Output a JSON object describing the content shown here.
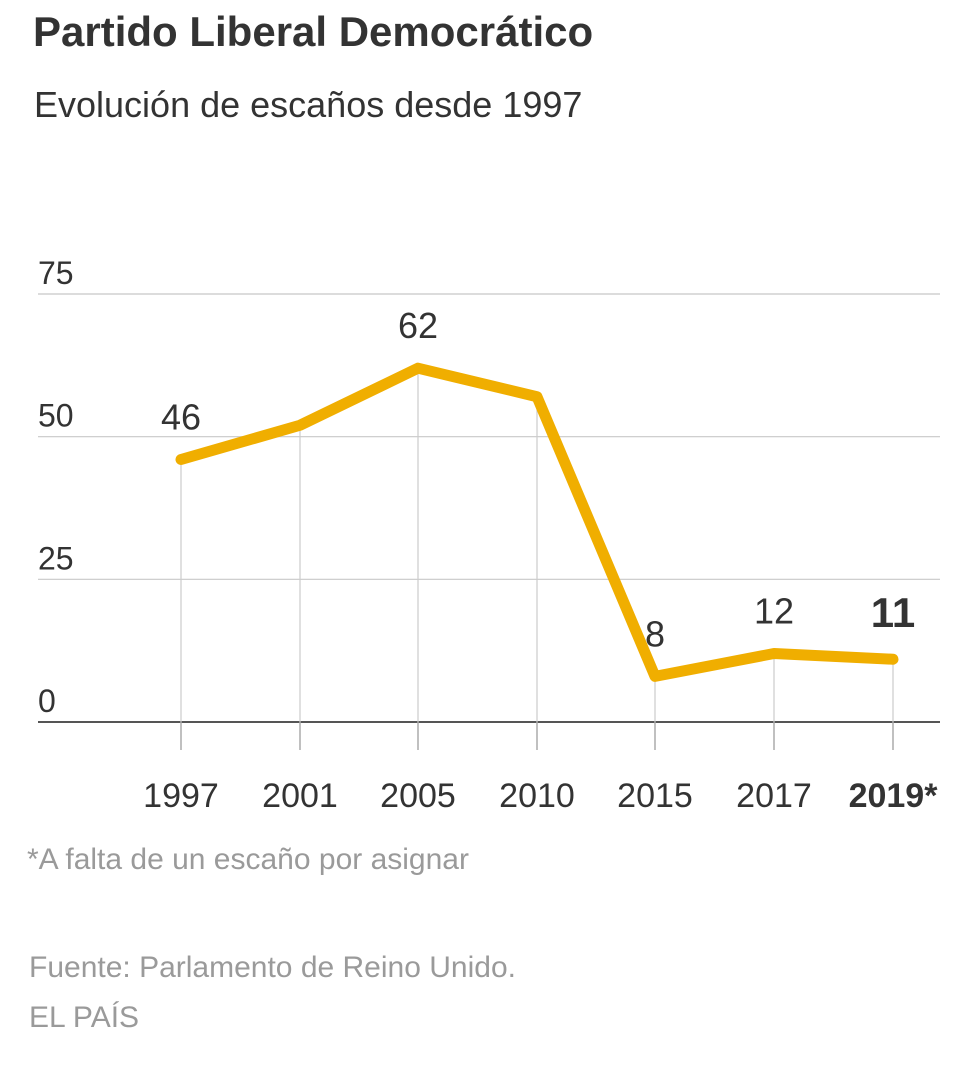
{
  "chart_data": {
    "type": "line",
    "title": "Partido Liberal Democrático",
    "subtitle": "Evolución de escaños desde 1997",
    "categories": [
      "1997",
      "2001",
      "2005",
      "2010",
      "2015",
      "2017",
      "2019*"
    ],
    "values": [
      46,
      52,
      62,
      57,
      8,
      12,
      11
    ],
    "value_labels": [
      "46",
      "",
      "62",
      "",
      "8",
      "12",
      "11"
    ],
    "highlight_index": 6,
    "yticks": [
      0,
      25,
      50,
      75
    ],
    "ylim": [
      0,
      75
    ],
    "xlabel": "",
    "ylabel": "",
    "grid": true,
    "legend": "none",
    "line_color": "#f0ae00",
    "footnote": "*A falta de un escaño por asignar",
    "source": "Fuente: Parlamento de Reino Unido.",
    "brand": "EL PAÍS"
  }
}
